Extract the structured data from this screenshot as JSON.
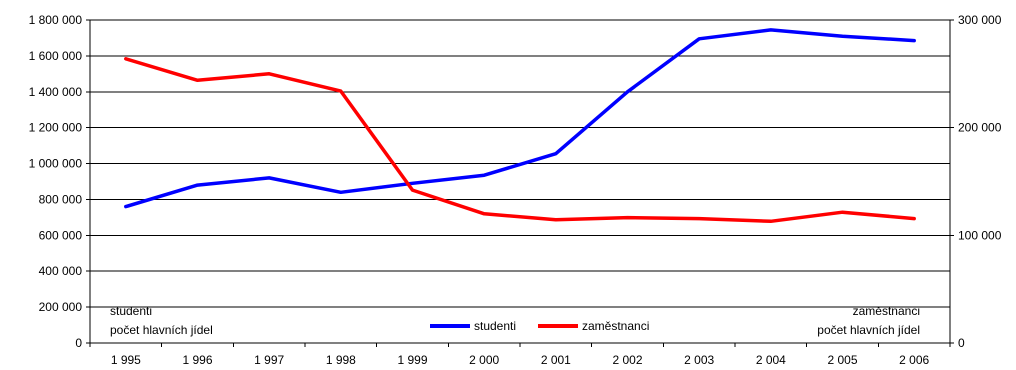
{
  "chart_data": {
    "type": "line",
    "categories": [
      "1 995",
      "1 996",
      "1 997",
      "1 998",
      "1 999",
      "2 000",
      "2 001",
      "2 002",
      "2 003",
      "2 004",
      "2 005",
      "2 006"
    ],
    "series": [
      {
        "name": "studenti",
        "axis": "left",
        "color": "#0000ff",
        "values": [
          760000,
          880000,
          920000,
          840000,
          890000,
          935000,
          1055000,
          1400000,
          1695000,
          1745000,
          1710000,
          1685000
        ]
      },
      {
        "name": "zaměstnanci",
        "axis": "right",
        "color": "#ff0000",
        "values": [
          264000,
          244000,
          250000,
          234000,
          142000,
          120000,
          114500,
          116500,
          115500,
          113000,
          121500,
          115500
        ]
      }
    ],
    "left_axis": {
      "ylim": [
        0,
        1800000
      ],
      "ticks": [
        0,
        200000,
        400000,
        600000,
        800000,
        1000000,
        1200000,
        1400000,
        1600000,
        1800000
      ],
      "tick_labels": [
        "0",
        "200 000",
        "400 000",
        "600 000",
        "800 000",
        "1 000 000",
        "1 200 000",
        "1 400 000",
        "1 600 000",
        "1 800 000"
      ]
    },
    "right_axis": {
      "ylim": [
        0,
        300000
      ],
      "ticks": [
        0,
        100000,
        200000,
        300000
      ],
      "tick_labels": [
        "0",
        "100 000",
        "200 000",
        "300 000"
      ]
    },
    "grid": true,
    "legend_position": "bottom-center",
    "annotations": {
      "left_line1": "studenti",
      "left_line2": "počet hlavních jídel",
      "right_line1": "zaměstnanci",
      "right_line2": "počet hlavních jídel"
    }
  }
}
